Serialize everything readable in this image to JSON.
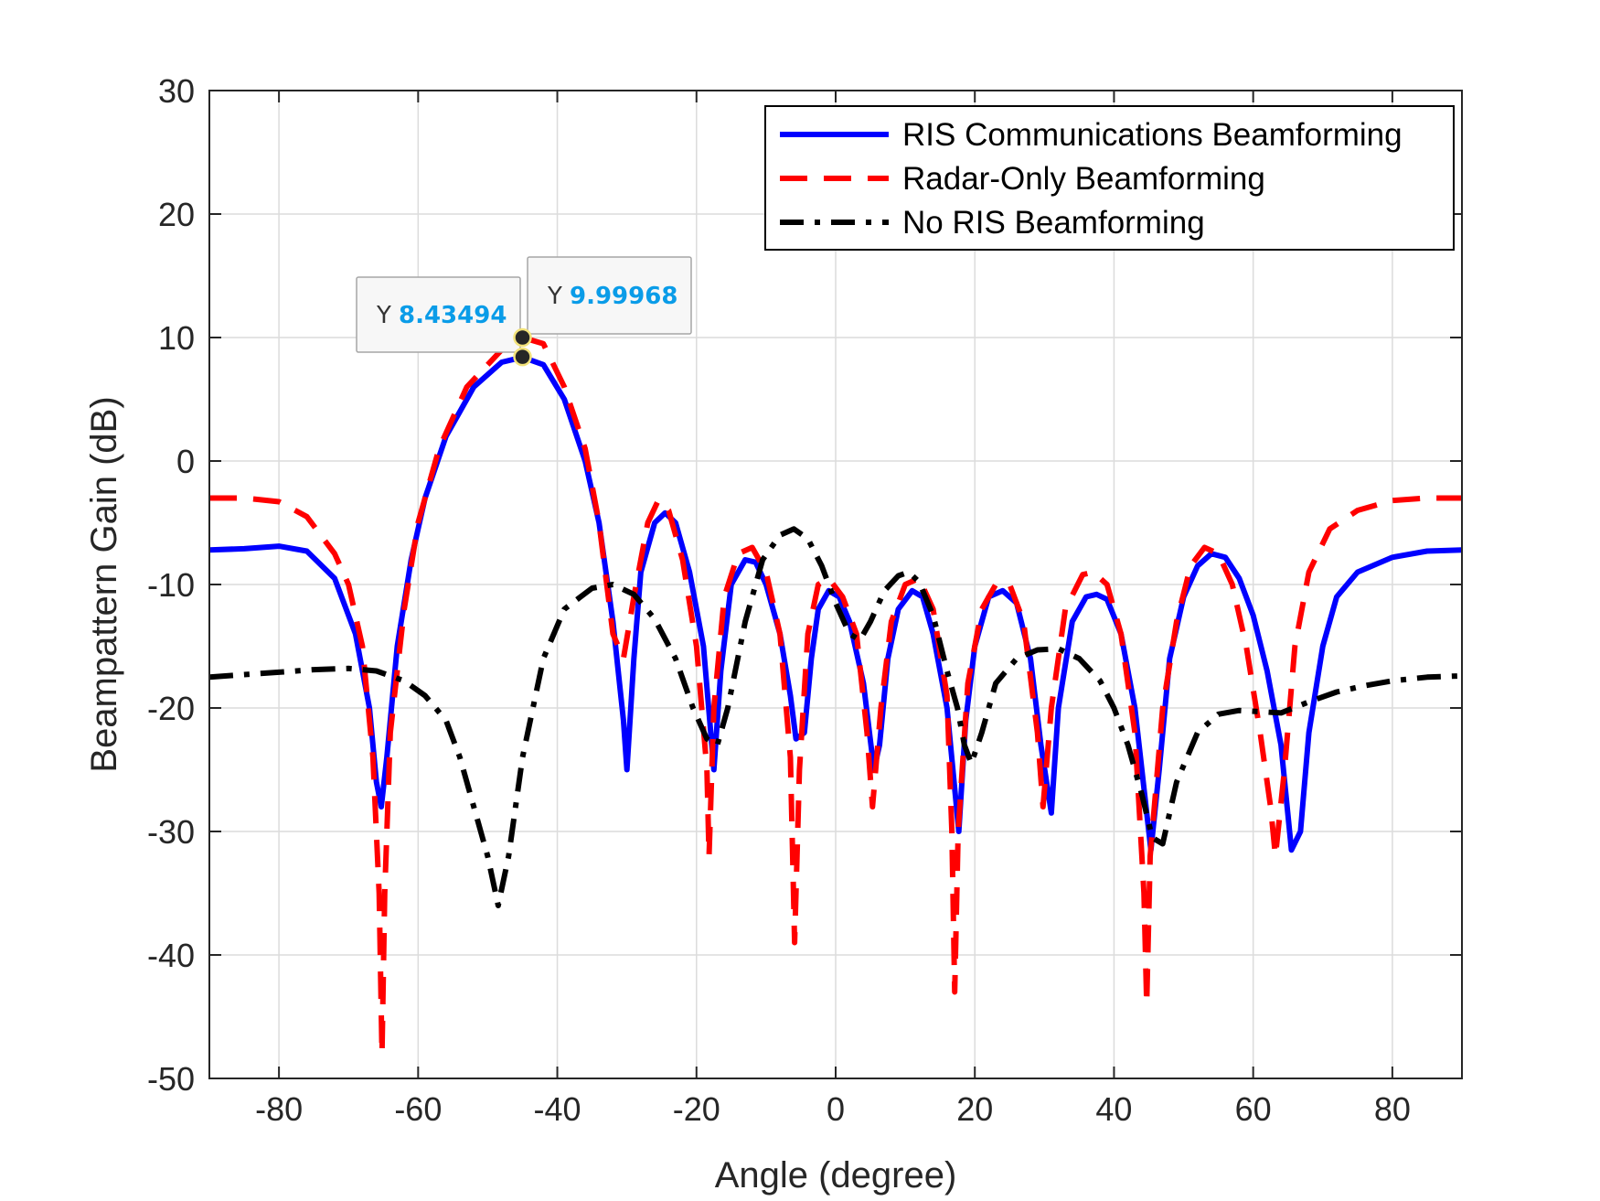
{
  "chart_data": {
    "type": "line",
    "title": "",
    "xlabel": "Angle (degree)",
    "ylabel": "Beampattern Gain (dB)",
    "xlim": [
      -90,
      90
    ],
    "ylim": [
      -50,
      30
    ],
    "xticks": [
      -80,
      -60,
      -40,
      -20,
      0,
      20,
      40,
      60,
      80
    ],
    "yticks": [
      -50,
      -40,
      -30,
      -20,
      -10,
      0,
      10,
      20,
      30
    ],
    "grid": true,
    "legend_position": "top-right",
    "series": [
      {
        "name": "RIS Communications Beamforming",
        "color": "#0000ff",
        "style": "solid",
        "points": [
          [
            -90,
            -7.2
          ],
          [
            -85,
            -7.1
          ],
          [
            -80,
            -6.9
          ],
          [
            -76,
            -7.3
          ],
          [
            -72,
            -9.5
          ],
          [
            -69,
            -14
          ],
          [
            -67,
            -20
          ],
          [
            -66,
            -26
          ],
          [
            -65.3,
            -28
          ],
          [
            -64.5,
            -24
          ],
          [
            -63,
            -15
          ],
          [
            -61,
            -8
          ],
          [
            -59,
            -3
          ],
          [
            -56,
            2
          ],
          [
            -52,
            6
          ],
          [
            -48,
            8
          ],
          [
            -45,
            8.4
          ],
          [
            -42,
            7.8
          ],
          [
            -39,
            5
          ],
          [
            -36,
            0
          ],
          [
            -34,
            -5
          ],
          [
            -32,
            -13
          ],
          [
            -30.5,
            -21
          ],
          [
            -30,
            -25
          ],
          [
            -29,
            -16
          ],
          [
            -28,
            -9
          ],
          [
            -26,
            -5
          ],
          [
            -24.5,
            -4.2
          ],
          [
            -23,
            -5
          ],
          [
            -21,
            -9
          ],
          [
            -19,
            -15
          ],
          [
            -17.5,
            -25
          ],
          [
            -16.5,
            -17
          ],
          [
            -15,
            -10
          ],
          [
            -13,
            -8
          ],
          [
            -11.5,
            -8.2
          ],
          [
            -10,
            -10
          ],
          [
            -8,
            -14
          ],
          [
            -6.5,
            -19
          ],
          [
            -5.7,
            -22.5
          ],
          [
            -4.5,
            -22
          ],
          [
            -3.5,
            -16
          ],
          [
            -2.5,
            -12
          ],
          [
            -1,
            -10.5
          ],
          [
            0.5,
            -11
          ],
          [
            2,
            -13
          ],
          [
            4,
            -18
          ],
          [
            5.5,
            -25
          ],
          [
            6.3,
            -23
          ],
          [
            7.5,
            -16
          ],
          [
            9,
            -12
          ],
          [
            11,
            -10.5
          ],
          [
            12.5,
            -11
          ],
          [
            14,
            -14
          ],
          [
            16,
            -20
          ],
          [
            17.7,
            -30
          ],
          [
            18.7,
            -21
          ],
          [
            20,
            -15
          ],
          [
            22,
            -11
          ],
          [
            24,
            -10.5
          ],
          [
            26,
            -11.5
          ],
          [
            28,
            -16
          ],
          [
            29.5,
            -23
          ],
          [
            31,
            -28.5
          ],
          [
            32,
            -20
          ],
          [
            34,
            -13
          ],
          [
            36,
            -11
          ],
          [
            37.5,
            -10.8
          ],
          [
            39,
            -11.2
          ],
          [
            41,
            -14
          ],
          [
            43,
            -20
          ],
          [
            45.3,
            -31.5
          ],
          [
            46.5,
            -25
          ],
          [
            48,
            -16
          ],
          [
            50,
            -11
          ],
          [
            52,
            -8.5
          ],
          [
            54,
            -7.5
          ],
          [
            56,
            -7.8
          ],
          [
            58,
            -9.5
          ],
          [
            60,
            -12.5
          ],
          [
            62,
            -17
          ],
          [
            64,
            -23
          ],
          [
            65.5,
            -31.5
          ],
          [
            66.8,
            -30
          ],
          [
            68,
            -22
          ],
          [
            70,
            -15
          ],
          [
            72,
            -11
          ],
          [
            75,
            -9
          ],
          [
            80,
            -7.8
          ],
          [
            85,
            -7.3
          ],
          [
            90,
            -7.2
          ]
        ]
      },
      {
        "name": "Radar-Only Beamforming",
        "color": "#ff0000",
        "style": "dashed",
        "points": [
          [
            -90,
            -3
          ],
          [
            -85,
            -3
          ],
          [
            -80,
            -3.3
          ],
          [
            -76,
            -4.5
          ],
          [
            -72,
            -7.5
          ],
          [
            -70,
            -10
          ],
          [
            -68,
            -15
          ],
          [
            -66.5,
            -24
          ],
          [
            -65.6,
            -35
          ],
          [
            -65.2,
            -48
          ],
          [
            -64.8,
            -35
          ],
          [
            -64,
            -22
          ],
          [
            -62,
            -12
          ],
          [
            -60,
            -5
          ],
          [
            -57,
            1
          ],
          [
            -53,
            6
          ],
          [
            -48,
            9
          ],
          [
            -45,
            10
          ],
          [
            -42,
            9.5
          ],
          [
            -39,
            6
          ],
          [
            -36,
            1
          ],
          [
            -34,
            -5
          ],
          [
            -32,
            -14
          ],
          [
            -30.5,
            -16
          ],
          [
            -29,
            -11
          ],
          [
            -27,
            -5
          ],
          [
            -25.5,
            -3.2
          ],
          [
            -24,
            -4
          ],
          [
            -22,
            -8
          ],
          [
            -20,
            -15
          ],
          [
            -18.5,
            -25
          ],
          [
            -18.2,
            -32
          ],
          [
            -17.5,
            -20
          ],
          [
            -16,
            -11
          ],
          [
            -14,
            -7.5
          ],
          [
            -12,
            -7
          ],
          [
            -10,
            -9
          ],
          [
            -8,
            -14
          ],
          [
            -6.5,
            -24
          ],
          [
            -5.9,
            -39
          ],
          [
            -5.2,
            -25
          ],
          [
            -4,
            -14
          ],
          [
            -2.5,
            -10
          ],
          [
            -1,
            -9.5
          ],
          [
            1,
            -11
          ],
          [
            3,
            -14
          ],
          [
            4.5,
            -22
          ],
          [
            5.3,
            -28
          ],
          [
            6.5,
            -20
          ],
          [
            8,
            -13
          ],
          [
            10,
            -10
          ],
          [
            12,
            -9.5
          ],
          [
            14,
            -12
          ],
          [
            16,
            -19
          ],
          [
            16.7,
            -30
          ],
          [
            17.1,
            -43
          ],
          [
            17.6,
            -30
          ],
          [
            19,
            -18
          ],
          [
            21,
            -12
          ],
          [
            23,
            -10
          ],
          [
            25,
            -10
          ],
          [
            27,
            -13
          ],
          [
            29,
            -22
          ],
          [
            29.8,
            -28
          ],
          [
            31,
            -20
          ],
          [
            33,
            -12
          ],
          [
            35.5,
            -9.2
          ],
          [
            37,
            -9
          ],
          [
            39,
            -10
          ],
          [
            41,
            -14
          ],
          [
            43,
            -22
          ],
          [
            44.3,
            -35
          ],
          [
            44.7,
            -44
          ],
          [
            45.2,
            -32
          ],
          [
            47,
            -20
          ],
          [
            49,
            -13
          ],
          [
            51,
            -8.5
          ],
          [
            53,
            -7
          ],
          [
            55,
            -7.5
          ],
          [
            57,
            -10
          ],
          [
            59,
            -15
          ],
          [
            61,
            -22
          ],
          [
            62.5,
            -28
          ],
          [
            63.2,
            -32
          ],
          [
            64.5,
            -25
          ],
          [
            66,
            -15
          ],
          [
            68,
            -9
          ],
          [
            71,
            -5.5
          ],
          [
            75,
            -4
          ],
          [
            80,
            -3.2
          ],
          [
            85,
            -3
          ],
          [
            90,
            -3
          ]
        ]
      },
      {
        "name": "No RIS Beamforming",
        "color": "#000000",
        "style": "dashdot",
        "points": [
          [
            -90,
            -17.5
          ],
          [
            -85,
            -17.3
          ],
          [
            -80,
            -17.1
          ],
          [
            -75,
            -16.9
          ],
          [
            -70,
            -16.8
          ],
          [
            -66,
            -17
          ],
          [
            -62,
            -17.8
          ],
          [
            -59,
            -19
          ],
          [
            -56,
            -21
          ],
          [
            -54,
            -24
          ],
          [
            -52,
            -28
          ],
          [
            -50,
            -32
          ],
          [
            -48.5,
            -36
          ],
          [
            -47,
            -32
          ],
          [
            -45,
            -24
          ],
          [
            -42,
            -16
          ],
          [
            -39,
            -12
          ],
          [
            -35,
            -10.3
          ],
          [
            -32,
            -10
          ],
          [
            -29,
            -10.8
          ],
          [
            -26,
            -12.8
          ],
          [
            -23,
            -16
          ],
          [
            -20.5,
            -20
          ],
          [
            -18.5,
            -22.5
          ],
          [
            -17,
            -23
          ],
          [
            -15.5,
            -20
          ],
          [
            -13,
            -13
          ],
          [
            -10.5,
            -8
          ],
          [
            -8,
            -6
          ],
          [
            -6,
            -5.5
          ],
          [
            -4,
            -6.3
          ],
          [
            -2,
            -8.5
          ],
          [
            0,
            -11.5
          ],
          [
            2,
            -14
          ],
          [
            3.5,
            -14.5
          ],
          [
            5,
            -13
          ],
          [
            7,
            -10.5
          ],
          [
            9,
            -9.3
          ],
          [
            10.5,
            -9
          ],
          [
            12,
            -9.8
          ],
          [
            14,
            -12.5
          ],
          [
            16,
            -17
          ],
          [
            17.5,
            -20
          ],
          [
            18.5,
            -23
          ],
          [
            19.5,
            -24.5
          ],
          [
            21,
            -22
          ],
          [
            23,
            -18
          ],
          [
            26,
            -16
          ],
          [
            29,
            -15.3
          ],
          [
            32,
            -15.2
          ],
          [
            35,
            -16
          ],
          [
            38,
            -17.8
          ],
          [
            40,
            -20
          ],
          [
            42,
            -23
          ],
          [
            44,
            -27
          ],
          [
            45.5,
            -30.5
          ],
          [
            47,
            -31
          ],
          [
            49,
            -26
          ],
          [
            52,
            -22
          ],
          [
            55,
            -20.5
          ],
          [
            58,
            -20.2
          ],
          [
            61,
            -20.3
          ],
          [
            64,
            -20.4
          ],
          [
            68,
            -19.5
          ],
          [
            72,
            -18.7
          ],
          [
            76,
            -18.2
          ],
          [
            80,
            -17.8
          ],
          [
            85,
            -17.5
          ],
          [
            90,
            -17.4
          ]
        ]
      }
    ],
    "annotations": [
      {
        "key": "Y",
        "value": "8.43494",
        "x": -45,
        "y": 8.43494
      },
      {
        "key": "Y",
        "value": "9.99968",
        "x": -45,
        "y": 9.99968
      }
    ]
  }
}
